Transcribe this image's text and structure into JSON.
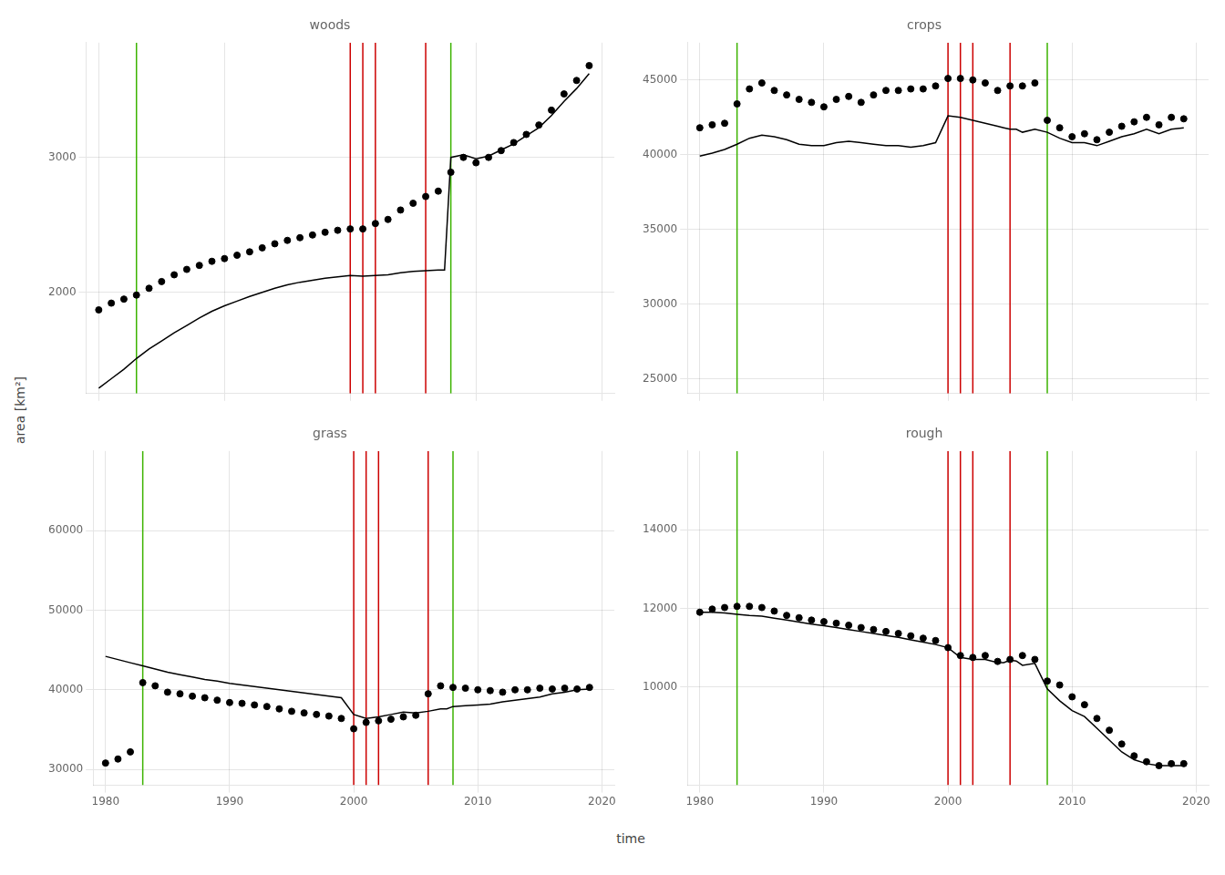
{
  "xlabel": "time",
  "ylabel": "area [km²]",
  "chart_data": [
    {
      "type": "scatter",
      "title": "woods",
      "xlim": [
        1979,
        2021
      ],
      "xticks": [
        1980,
        1990,
        2000,
        2010,
        2020
      ],
      "ylim": [
        1250,
        3850
      ],
      "yticks": [
        2000,
        3000
      ],
      "grid": true,
      "tick_labels": "y",
      "vlines": [
        {
          "x": 1983,
          "color": "#3cb300"
        },
        {
          "x": 2008,
          "color": "#3cb300"
        },
        {
          "x": 2000,
          "color": "#cc0000"
        },
        {
          "x": 2001,
          "color": "#cc0000"
        },
        {
          "x": 2002,
          "color": "#cc0000"
        },
        {
          "x": 2006,
          "color": "#cc0000"
        }
      ],
      "series": [
        {
          "type": "line",
          "color": "black",
          "x": [
            1980,
            1981,
            1982,
            1983,
            1984,
            1985,
            1986,
            1987,
            1988,
            1989,
            1990,
            1991,
            1992,
            1993,
            1994,
            1995,
            1996,
            1997,
            1998,
            1999,
            2000,
            2001,
            2002,
            2003,
            2004,
            2005,
            2006,
            2007,
            2007.5,
            2008,
            2009,
            2010,
            2011,
            2012,
            2013,
            2014,
            2015,
            2016,
            2017,
            2018,
            2019
          ],
          "values": [
            1290,
            1360,
            1430,
            1510,
            1580,
            1640,
            1700,
            1755,
            1810,
            1860,
            1900,
            1935,
            1970,
            2000,
            2030,
            2055,
            2075,
            2090,
            2105,
            2115,
            2125,
            2120,
            2125,
            2130,
            2145,
            2155,
            2160,
            2165,
            2165,
            3000,
            3020,
            2990,
            3010,
            3055,
            3100,
            3160,
            3220,
            3310,
            3415,
            3510,
            3620
          ]
        },
        {
          "type": "scatter",
          "color": "black",
          "x": [
            1980,
            1981,
            1982,
            1983,
            1984,
            1985,
            1986,
            1987,
            1988,
            1989,
            1990,
            1991,
            1992,
            1993,
            1994,
            1995,
            1996,
            1997,
            1998,
            1999,
            2000,
            2001,
            2002,
            2003,
            2004,
            2005,
            2006,
            2007,
            2008,
            2009,
            2010,
            2011,
            2012,
            2013,
            2014,
            2015,
            2016,
            2017,
            2018,
            2019
          ],
          "values": [
            1870,
            1920,
            1950,
            1980,
            2030,
            2080,
            2130,
            2170,
            2200,
            2230,
            2250,
            2275,
            2300,
            2330,
            2360,
            2385,
            2405,
            2425,
            2445,
            2460,
            2470,
            2470,
            2510,
            2540,
            2610,
            2660,
            2710,
            2750,
            2890,
            3000,
            2960,
            3000,
            3050,
            3110,
            3170,
            3240,
            3350,
            3470,
            3570,
            3680
          ]
        }
      ]
    },
    {
      "type": "scatter",
      "title": "crops",
      "xlim": [
        1979,
        2021
      ],
      "xticks": [
        1980,
        1990,
        2000,
        2010,
        2020
      ],
      "ylim": [
        24000,
        47500
      ],
      "yticks": [
        25000,
        30000,
        35000,
        40000,
        45000
      ],
      "grid": true,
      "tick_labels": "y",
      "vlines": [
        {
          "x": 1983,
          "color": "#3cb300"
        },
        {
          "x": 2008,
          "color": "#3cb300"
        },
        {
          "x": 2000,
          "color": "#cc0000"
        },
        {
          "x": 2001,
          "color": "#cc0000"
        },
        {
          "x": 2002,
          "color": "#cc0000"
        },
        {
          "x": 2005,
          "color": "#cc0000"
        }
      ],
      "series": [
        {
          "type": "line",
          "color": "black",
          "x": [
            1980,
            1981,
            1982,
            1983,
            1984,
            1985,
            1986,
            1987,
            1988,
            1989,
            1990,
            1991,
            1992,
            1993,
            1994,
            1995,
            1996,
            1997,
            1998,
            1999,
            2000,
            2001,
            2002,
            2003,
            2004,
            2004.5,
            2005,
            2005.5,
            2006,
            2007,
            2008,
            2009,
            2010,
            2011,
            2012,
            2013,
            2014,
            2015,
            2016,
            2017,
            2018,
            2019
          ],
          "values": [
            39900,
            40100,
            40350,
            40700,
            41100,
            41300,
            41200,
            41000,
            40700,
            40600,
            40600,
            40800,
            40900,
            40800,
            40700,
            40600,
            40600,
            40500,
            40600,
            40800,
            42600,
            42500,
            42300,
            42100,
            41900,
            41800,
            41700,
            41700,
            41500,
            41700,
            41500,
            41100,
            40800,
            40800,
            40600,
            40900,
            41200,
            41400,
            41700,
            41400,
            41700,
            41800
          ]
        },
        {
          "type": "scatter",
          "color": "black",
          "x": [
            1980,
            1981,
            1982,
            1983,
            1984,
            1985,
            1986,
            1987,
            1988,
            1989,
            1990,
            1991,
            1992,
            1993,
            1994,
            1995,
            1996,
            1997,
            1998,
            1999,
            2000,
            2001,
            2002,
            2003,
            2004,
            2005,
            2006,
            2007,
            2008,
            2009,
            2010,
            2011,
            2012,
            2013,
            2014,
            2015,
            2016,
            2017,
            2018,
            2019
          ],
          "values": [
            41800,
            42000,
            42100,
            43400,
            44400,
            44800,
            44300,
            44000,
            43700,
            43500,
            43200,
            43700,
            43900,
            43500,
            44000,
            44300,
            44300,
            44400,
            44400,
            44600,
            45100,
            45100,
            45000,
            44800,
            44300,
            44600,
            44600,
            44800,
            42300,
            41800,
            41200,
            41400,
            41000,
            41500,
            41900,
            42200,
            42500,
            42000,
            42500,
            42400
          ]
        }
      ]
    },
    {
      "type": "scatter",
      "title": "grass",
      "xlim": [
        1979,
        2021
      ],
      "xticks": [
        1980,
        1990,
        2000,
        2010,
        2020
      ],
      "ylim": [
        28000,
        70000
      ],
      "yticks": [
        30000,
        40000,
        50000,
        60000
      ],
      "grid": true,
      "vlines": [
        {
          "x": 1983,
          "color": "#3cb300"
        },
        {
          "x": 2008,
          "color": "#3cb300"
        },
        {
          "x": 2000,
          "color": "#cc0000"
        },
        {
          "x": 2001,
          "color": "#cc0000"
        },
        {
          "x": 2002,
          "color": "#cc0000"
        },
        {
          "x": 2006,
          "color": "#cc0000"
        }
      ],
      "series": [
        {
          "type": "line",
          "color": "black",
          "x": [
            1980,
            1981,
            1982,
            1983,
            1984,
            1985,
            1986,
            1987,
            1988,
            1989,
            1990,
            1991,
            1992,
            1993,
            1994,
            1995,
            1996,
            1997,
            1998,
            1999,
            2000,
            2001,
            2002,
            2003,
            2004,
            2005,
            2006,
            2007,
            2007.5,
            2008,
            2009,
            2010,
            2011,
            2012,
            2013,
            2014,
            2015,
            2016,
            2017,
            2018,
            2019
          ],
          "values": [
            44200,
            43800,
            43400,
            43000,
            42600,
            42200,
            41900,
            41600,
            41300,
            41100,
            40800,
            40600,
            40400,
            40200,
            40000,
            39800,
            39600,
            39400,
            39200,
            39000,
            36900,
            36400,
            36600,
            36900,
            37200,
            37100,
            37300,
            37600,
            37600,
            37900,
            38000,
            38100,
            38200,
            38500,
            38700,
            38900,
            39100,
            39500,
            39700,
            40000,
            40100
          ]
        },
        {
          "type": "scatter",
          "color": "black",
          "x": [
            1980,
            1981,
            1982,
            1983,
            1984,
            1985,
            1986,
            1987,
            1988,
            1989,
            1990,
            1991,
            1992,
            1993,
            1994,
            1995,
            1996,
            1997,
            1998,
            1999,
            2000,
            2001,
            2002,
            2003,
            2004,
            2005,
            2006,
            2007,
            2008,
            2009,
            2010,
            2011,
            2012,
            2013,
            2014,
            2015,
            2016,
            2017,
            2018,
            2019
          ],
          "values": [
            30800,
            31300,
            32200,
            40900,
            40500,
            39700,
            39500,
            39200,
            39000,
            38700,
            38400,
            38300,
            38100,
            37900,
            37600,
            37300,
            37100,
            36900,
            36700,
            36400,
            35100,
            35900,
            36100,
            36300,
            36600,
            36800,
            39500,
            40500,
            40300,
            40200,
            40000,
            39900,
            39700,
            40000,
            40000,
            40200,
            40100,
            40200,
            40100,
            40300
          ]
        }
      ]
    },
    {
      "type": "scatter",
      "title": "rough",
      "xlim": [
        1979,
        2021
      ],
      "xticks": [
        1980,
        1990,
        2000,
        2010,
        2020
      ],
      "ylim": [
        7500,
        16000
      ],
      "yticks": [
        10000,
        12000,
        14000
      ],
      "grid": true,
      "vlines": [
        {
          "x": 1983,
          "color": "#3cb300"
        },
        {
          "x": 2008,
          "color": "#3cb300"
        },
        {
          "x": 2000,
          "color": "#cc0000"
        },
        {
          "x": 2001,
          "color": "#cc0000"
        },
        {
          "x": 2002,
          "color": "#cc0000"
        },
        {
          "x": 2005,
          "color": "#cc0000"
        }
      ],
      "series": [
        {
          "type": "line",
          "color": "black",
          "x": [
            1980,
            1981,
            1982,
            1983,
            1984,
            1985,
            1986,
            1987,
            1988,
            1989,
            1990,
            1991,
            1992,
            1993,
            1994,
            1995,
            1996,
            1997,
            1998,
            1999,
            2000,
            2001,
            2002,
            2003,
            2004,
            2004.5,
            2005,
            2005.5,
            2006,
            2007,
            2008,
            2009,
            2010,
            2011,
            2012,
            2013,
            2014,
            2015,
            2016,
            2017,
            2018,
            2019
          ],
          "values": [
            11900,
            11900,
            11880,
            11850,
            11820,
            11800,
            11750,
            11700,
            11650,
            11600,
            11560,
            11510,
            11460,
            11410,
            11360,
            11310,
            11260,
            11200,
            11140,
            11080,
            11000,
            10750,
            10700,
            10700,
            10620,
            10620,
            10680,
            10660,
            10550,
            10600,
            9950,
            9650,
            9400,
            9250,
            8950,
            8650,
            8350,
            8150,
            8050,
            8000,
            8000,
            8000
          ]
        },
        {
          "type": "scatter",
          "color": "black",
          "x": [
            1980,
            1981,
            1982,
            1983,
            1984,
            1985,
            1986,
            1987,
            1988,
            1989,
            1990,
            1991,
            1992,
            1993,
            1994,
            1995,
            1996,
            1997,
            1998,
            1999,
            2000,
            2001,
            2002,
            2003,
            2004,
            2005,
            2006,
            2007,
            2008,
            2009,
            2010,
            2011,
            2012,
            2013,
            2014,
            2015,
            2016,
            2017,
            2018,
            2019
          ],
          "values": [
            11900,
            11980,
            12020,
            12050,
            12050,
            12020,
            11930,
            11820,
            11760,
            11700,
            11660,
            11620,
            11570,
            11510,
            11460,
            11410,
            11360,
            11300,
            11240,
            11180,
            11000,
            10800,
            10750,
            10800,
            10650,
            10700,
            10800,
            10700,
            10150,
            10050,
            9750,
            9550,
            9200,
            8900,
            8550,
            8250,
            8100,
            8000,
            8050,
            8050
          ]
        }
      ]
    }
  ]
}
